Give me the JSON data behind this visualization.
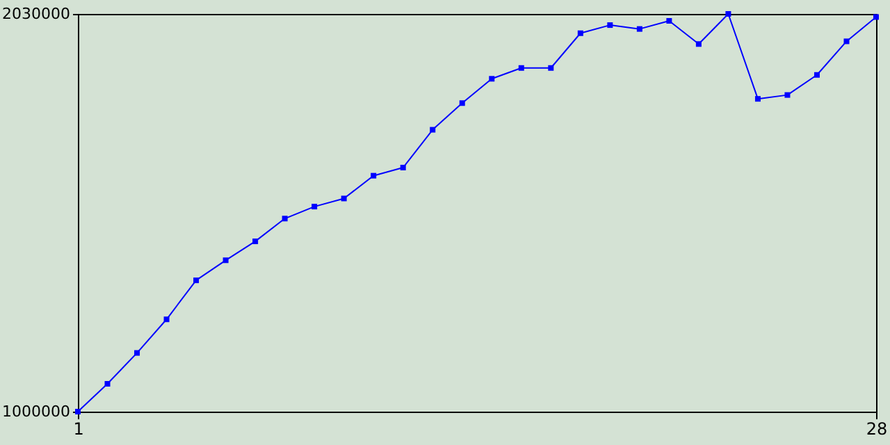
{
  "chart_data": {
    "type": "line",
    "x": [
      1,
      2,
      3,
      4,
      5,
      6,
      7,
      8,
      9,
      10,
      11,
      12,
      13,
      14,
      15,
      16,
      17,
      18,
      19,
      20,
      21,
      22,
      23,
      24,
      25,
      26,
      27,
      28
    ],
    "series": [
      {
        "color": "#0000ff",
        "values": [
          1000000,
          1072000,
          1152000,
          1239000,
          1340000,
          1392000,
          1441000,
          1500000,
          1531000,
          1552000,
          1611000,
          1632000,
          1730000,
          1799000,
          1862000,
          1890000,
          1890000,
          1980000,
          2001000,
          1991000,
          2012000,
          1952000,
          2030000,
          1810000,
          1820000,
          1872000,
          1959000,
          2022000
        ]
      }
    ],
    "xlim": [
      1,
      28
    ],
    "xticks": [
      1,
      28
    ],
    "ylim": [
      1000000,
      2030000
    ],
    "yticks": [
      1000000,
      2030000
    ],
    "grid": false,
    "marker": "square",
    "line_style": "solid"
  }
}
